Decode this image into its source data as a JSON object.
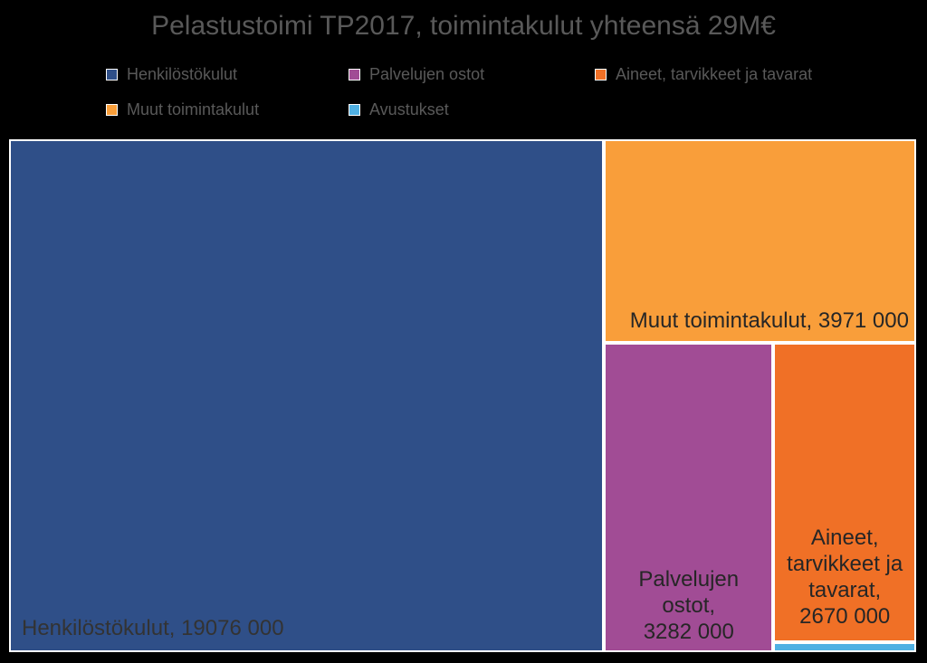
{
  "chart_data": {
    "type": "treemap",
    "title": "Pelastustoimi TP2017, toimintakulut yhteensä 29M€",
    "total_label": "29M€",
    "items": [
      {
        "key": "henkilostokulut",
        "name": "Henkilöstökulut",
        "value": 19076000,
        "value_label": "19076 000",
        "color": "#2f4f88"
      },
      {
        "key": "muut",
        "name": "Muut toimintakulut",
        "value": 3971000,
        "value_label": "3971 000",
        "color": "#f99e3a"
      },
      {
        "key": "palvelujen",
        "name": "Palvelujen ostot",
        "value": 3282000,
        "value_label": "3282 000",
        "color": "#a14c95"
      },
      {
        "key": "aineet",
        "name": "Aineet, tarvikkeet ja tavarat",
        "value": 2670000,
        "value_label": "2670 000",
        "color": "#f07026"
      },
      {
        "key": "avustukset",
        "name": "Avustukset",
        "value": 90000,
        "value_label": "",
        "color": "#4fb0e3"
      }
    ],
    "legend": {
      "position": "top",
      "entries": [
        "Henkilöstökulut",
        "Palvelujen ostot",
        "Aineet, tarvikkeet ja tavarat",
        "Muut toimintakulut",
        "Avustukset"
      ]
    }
  },
  "labels": {
    "henkilostokulut": [
      "Henkilöstökulut, 19076 000"
    ],
    "muut": [
      "Muut toimintakulut, 3971 000"
    ],
    "palvelujen": [
      "Palvelujen",
      "ostot,",
      "3282 000"
    ],
    "aineet": [
      "Aineet,",
      "tarvikkeet ja",
      "tavarat,",
      "2670 000"
    ]
  }
}
